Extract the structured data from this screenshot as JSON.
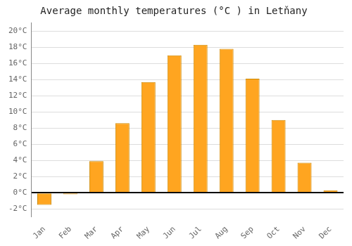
{
  "chart_data": {
    "type": "bar",
    "title": "Average monthly temperatures (°C ) in Letňany",
    "categories": [
      "Jan",
      "Feb",
      "Mar",
      "Apr",
      "May",
      "Jun",
      "Jul",
      "Aug",
      "Sep",
      "Oct",
      "Nov",
      "Dec"
    ],
    "values": [
      -1.5,
      -0.2,
      3.9,
      8.6,
      13.7,
      17.0,
      18.3,
      17.8,
      14.1,
      9.0,
      3.7,
      0.3
    ],
    "color": "#FFA520",
    "ylim": [
      -3,
      21
    ],
    "yticks": [
      {
        "value": -2,
        "label": "-2°C"
      },
      {
        "value": 0,
        "label": "0°C"
      },
      {
        "value": 2,
        "label": "2°C"
      },
      {
        "value": 4,
        "label": "4°C"
      },
      {
        "value": 6,
        "label": "6°C"
      },
      {
        "value": 8,
        "label": "8°C"
      },
      {
        "value": 10,
        "label": "10°C"
      },
      {
        "value": 12,
        "label": "12°C"
      },
      {
        "value": 14,
        "label": "14°C"
      },
      {
        "value": 16,
        "label": "16°C"
      },
      {
        "value": 18,
        "label": "18°C"
      },
      {
        "value": 20,
        "label": "20°C"
      }
    ],
    "grid": true
  }
}
